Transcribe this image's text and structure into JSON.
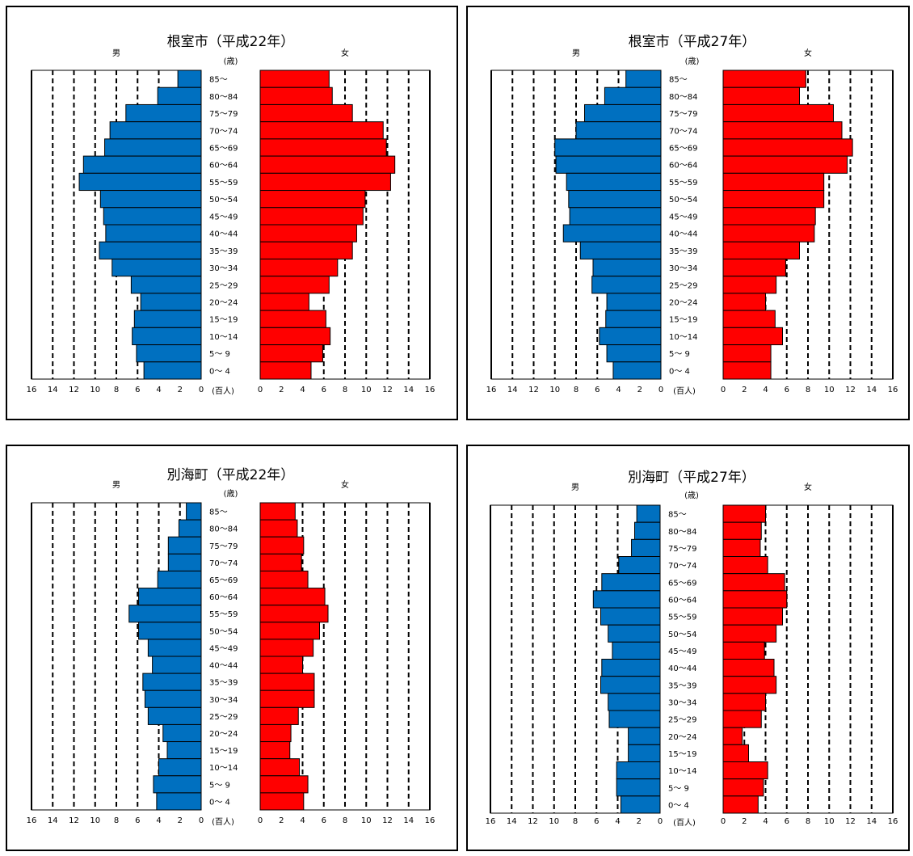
{
  "colors": {
    "male": "#0070C0",
    "female": "#FF0000",
    "gridline": "#000000"
  },
  "labels": {
    "male": "男",
    "female": "女",
    "age_unit": "(歳)",
    "value_unit": "(百人)"
  },
  "chart_data": [
    {
      "type": "bar",
      "title": "根室市（平成22年）",
      "categories": [
        "85～",
        "80～84",
        "75～79",
        "70～74",
        "65～69",
        "60～64",
        "55～59",
        "50～54",
        "45～49",
        "40～44",
        "35～39",
        "30～34",
        "25～29",
        "20～24",
        "15～19",
        "10～14",
        "5～ 9",
        "0～ 4"
      ],
      "series": [
        {
          "name": "男",
          "values": [
            2.2,
            4.1,
            7.1,
            8.6,
            9.1,
            11.1,
            11.5,
            9.5,
            9.2,
            9.0,
            9.6,
            8.4,
            6.6,
            5.7,
            6.3,
            6.5,
            6.1,
            5.4
          ]
        },
        {
          "name": "女",
          "values": [
            6.5,
            6.8,
            8.7,
            11.6,
            11.9,
            12.7,
            12.3,
            9.9,
            9.7,
            9.1,
            8.7,
            7.3,
            6.5,
            4.6,
            6.2,
            6.6,
            5.9,
            4.8
          ]
        }
      ],
      "xticks": [
        0,
        2,
        4,
        6,
        8,
        10,
        12,
        14,
        16
      ],
      "xlim": [
        0,
        16
      ]
    },
    {
      "type": "bar",
      "title": "根室市（平成27年）",
      "categories": [
        "85～",
        "80～84",
        "75～79",
        "70～74",
        "65～69",
        "60～64",
        "55～59",
        "50～54",
        "45～49",
        "40～44",
        "35～39",
        "30～34",
        "25～29",
        "20～24",
        "15～19",
        "10～14",
        "5～ 9",
        "0～ 4"
      ],
      "series": [
        {
          "name": "男",
          "values": [
            3.3,
            5.3,
            7.2,
            8.0,
            10.0,
            9.9,
            8.9,
            8.7,
            8.6,
            9.2,
            7.6,
            6.4,
            6.5,
            5.1,
            5.2,
            5.8,
            5.1,
            4.5
          ]
        },
        {
          "name": "女",
          "values": [
            7.8,
            7.2,
            10.4,
            11.2,
            12.2,
            11.7,
            9.5,
            9.5,
            8.7,
            8.6,
            7.2,
            5.9,
            5.0,
            4.0,
            4.9,
            5.6,
            4.5,
            4.5
          ]
        }
      ],
      "xticks": [
        0,
        2,
        4,
        6,
        8,
        10,
        12,
        14,
        16
      ],
      "xlim": [
        0,
        16
      ]
    },
    {
      "type": "bar",
      "title": "別海町（平成22年）",
      "categories": [
        "85～",
        "80～84",
        "75～79",
        "70～74",
        "65～69",
        "60～64",
        "55～59",
        "50～54",
        "45～49",
        "40～44",
        "35～39",
        "30～34",
        "25～29",
        "20～24",
        "15～19",
        "10～14",
        "5～ 9",
        "0～ 4"
      ],
      "series": [
        {
          "name": "男",
          "values": [
            1.4,
            2.1,
            3.1,
            3.1,
            4.1,
            5.9,
            6.8,
            5.9,
            5.0,
            4.6,
            5.5,
            5.3,
            5.0,
            3.6,
            3.2,
            4.0,
            4.5,
            4.2
          ]
        },
        {
          "name": "女",
          "values": [
            3.3,
            3.5,
            4.1,
            3.9,
            4.5,
            6.1,
            6.4,
            5.6,
            5.0,
            4.0,
            5.1,
            5.1,
            3.6,
            2.9,
            2.8,
            3.7,
            4.5,
            4.1
          ]
        }
      ],
      "xticks": [
        0,
        2,
        4,
        6,
        8,
        10,
        12,
        14,
        16
      ],
      "xlim": [
        0,
        16
      ]
    },
    {
      "type": "bar",
      "title": "別海町（平成27年）",
      "categories": [
        "85～",
        "80～84",
        "75～79",
        "70～74",
        "65～69",
        "60～64",
        "55～59",
        "50～54",
        "45～49",
        "40～44",
        "35～39",
        "30～34",
        "25～29",
        "20～24",
        "15～19",
        "10～14",
        "5～ 9",
        "0～ 4"
      ],
      "series": [
        {
          "name": "男",
          "values": [
            2.2,
            2.4,
            2.7,
            3.9,
            5.5,
            6.3,
            5.6,
            4.9,
            4.5,
            5.5,
            5.6,
            4.9,
            4.8,
            3.0,
            3.0,
            4.1,
            4.1,
            3.7
          ]
        },
        {
          "name": "女",
          "values": [
            4.0,
            3.6,
            3.5,
            4.2,
            5.8,
            6.0,
            5.6,
            5.0,
            3.9,
            4.8,
            5.0,
            4.0,
            3.6,
            1.8,
            2.4,
            4.2,
            3.8,
            3.3
          ]
        }
      ],
      "xticks": [
        0,
        2,
        4,
        6,
        8,
        10,
        12,
        14,
        16
      ],
      "xlim": [
        0,
        16
      ]
    }
  ]
}
